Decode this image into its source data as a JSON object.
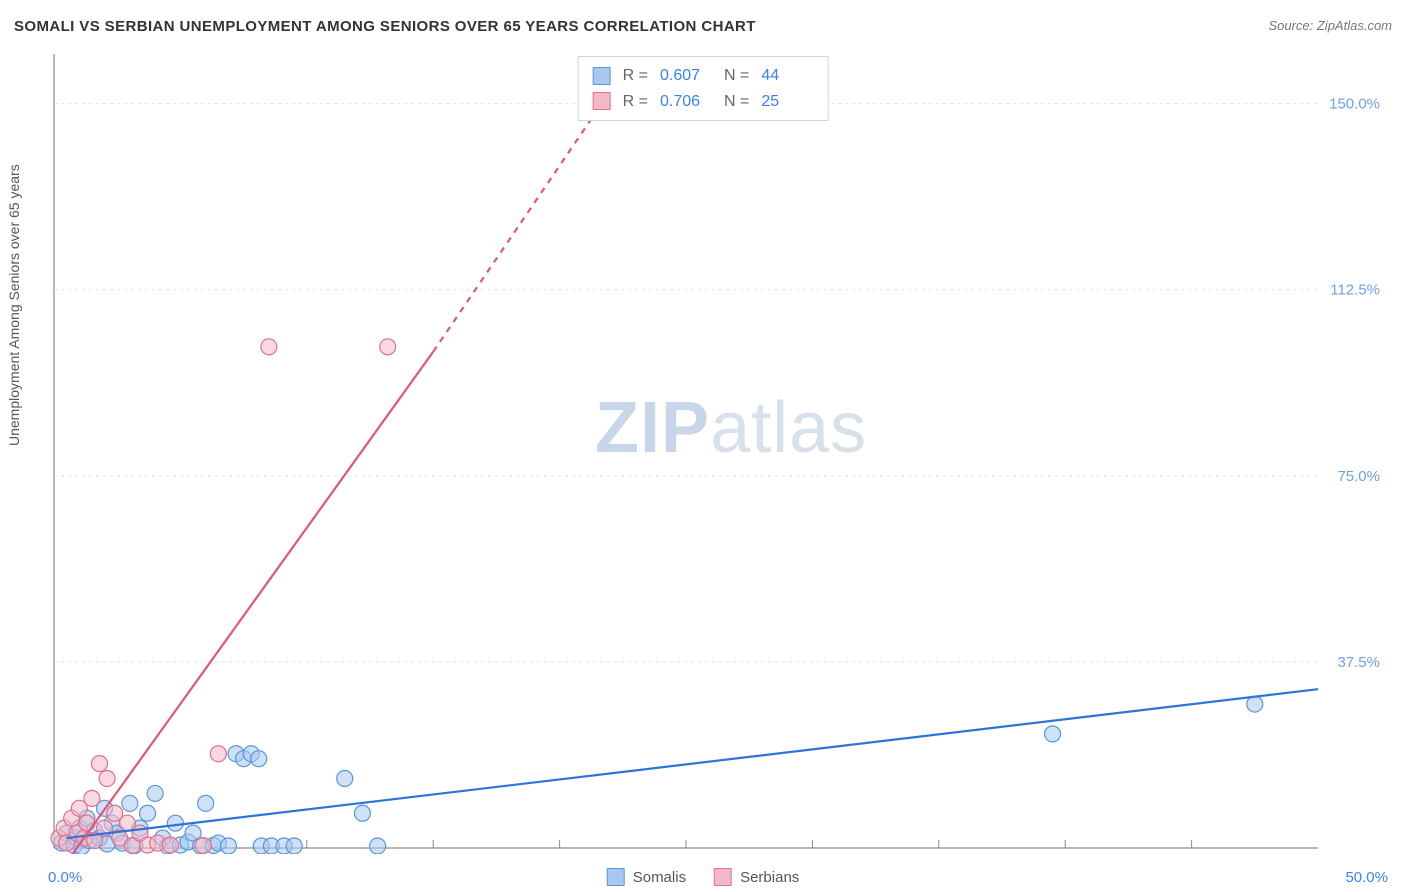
{
  "header": {
    "title": "SOMALI VS SERBIAN UNEMPLOYMENT AMONG SENIORS OVER 65 YEARS CORRELATION CHART",
    "source": "Source: ZipAtlas.com"
  },
  "watermark": {
    "zip": "ZIP",
    "atlas": "atlas"
  },
  "chart": {
    "type": "scatter",
    "ylabel": "Unemployment Among Seniors over 65 years",
    "background_color": "#ffffff",
    "axis_color": "#8a8a8a",
    "grid_color": "#e3e3e3",
    "tick_color": "#8a8a8a",
    "ytick_label_color": "#6fa0ec",
    "xtick_label_color": "#3b82f6",
    "ylabel_fontsize": 14,
    "tick_fontsize": 15,
    "xlim": [
      0,
      50
    ],
    "ylim": [
      0,
      160
    ],
    "y_ticks": [
      37.5,
      75.0,
      112.5,
      150.0
    ],
    "y_tick_labels": [
      "37.5%",
      "75.0%",
      "112.5%",
      "150.0%"
    ],
    "x_minor_ticks": [
      5,
      10,
      15,
      20,
      25,
      30,
      35,
      40,
      45
    ],
    "x_origin_label": "0.0%",
    "x_max_label": "50.0%",
    "marker_radius": 8,
    "marker_stroke_width": 1.2,
    "line_width": 2.2,
    "series": [
      {
        "name": "Somalis",
        "fill_color": "#a7c8f0",
        "stroke_color": "#5a96de",
        "fill_opacity": 0.55,
        "line_color": "#2d74da",
        "line_dash": "none",
        "regression": {
          "x1": 0.5,
          "y1": 2,
          "x2": 50,
          "y2": 32
        },
        "stats": {
          "R": "0.607",
          "N": "44"
        },
        "points": [
          [
            0.3,
            1
          ],
          [
            0.5,
            3
          ],
          [
            0.8,
            0.5
          ],
          [
            0.9,
            2
          ],
          [
            1.0,
            4
          ],
          [
            1.1,
            0.3
          ],
          [
            1.3,
            6
          ],
          [
            1.4,
            1.5
          ],
          [
            1.6,
            3.5
          ],
          [
            1.8,
            2
          ],
          [
            2.0,
            8
          ],
          [
            2.1,
            0.8
          ],
          [
            2.3,
            5
          ],
          [
            2.5,
            3
          ],
          [
            2.7,
            1
          ],
          [
            3.0,
            9
          ],
          [
            3.2,
            0.5
          ],
          [
            3.4,
            4
          ],
          [
            3.7,
            7
          ],
          [
            4.0,
            11
          ],
          [
            4.3,
            2
          ],
          [
            4.5,
            0.4
          ],
          [
            4.8,
            5
          ],
          [
            5.0,
            0.6
          ],
          [
            5.3,
            1.2
          ],
          [
            5.5,
            3
          ],
          [
            5.8,
            0.4
          ],
          [
            6.0,
            9
          ],
          [
            6.3,
            0.5
          ],
          [
            6.5,
            1
          ],
          [
            6.9,
            0.4
          ],
          [
            7.2,
            19
          ],
          [
            7.5,
            18
          ],
          [
            7.8,
            19
          ],
          [
            8.1,
            18
          ],
          [
            8.2,
            0.4
          ],
          [
            8.6,
            0.4
          ],
          [
            9.1,
            0.4
          ],
          [
            9.5,
            0.4
          ],
          [
            11.5,
            14
          ],
          [
            12.2,
            7
          ],
          [
            12.8,
            0.4
          ],
          [
            39.5,
            23
          ],
          [
            47.5,
            29
          ]
        ]
      },
      {
        "name": "Serbians",
        "fill_color": "#f3b9c6",
        "stroke_color": "#e36f8d",
        "fill_opacity": 0.55,
        "line_color": "#e25679",
        "line_dash": "dash_after",
        "regression_solid": {
          "x1": 0.2,
          "y1": -5,
          "x2": 15,
          "y2": 100
        },
        "regression_dash": {
          "x1": 15,
          "y1": 100,
          "x2": 23,
          "y2": 160
        },
        "stats": {
          "R": "0.706",
          "N": "25"
        },
        "points": [
          [
            0.2,
            2
          ],
          [
            0.4,
            4
          ],
          [
            0.5,
            1
          ],
          [
            0.7,
            6
          ],
          [
            0.9,
            3
          ],
          [
            1.0,
            8
          ],
          [
            1.2,
            2
          ],
          [
            1.3,
            5
          ],
          [
            1.5,
            10
          ],
          [
            1.6,
            1.5
          ],
          [
            1.8,
            17
          ],
          [
            2.0,
            4
          ],
          [
            2.1,
            14
          ],
          [
            2.4,
            7
          ],
          [
            2.6,
            2
          ],
          [
            2.9,
            5
          ],
          [
            3.1,
            0.5
          ],
          [
            3.4,
            3
          ],
          [
            3.7,
            0.6
          ],
          [
            4.1,
            1
          ],
          [
            4.6,
            0.6
          ],
          [
            5.9,
            0.5
          ],
          [
            6.5,
            19
          ],
          [
            8.5,
            101
          ],
          [
            13.2,
            101
          ]
        ]
      }
    ]
  },
  "bottom_legend": {
    "items": [
      {
        "label": "Somalis",
        "fill": "#a7c8f0",
        "stroke": "#5a96de"
      },
      {
        "label": "Serbians",
        "fill": "#f3b9c6",
        "stroke": "#e36f8d"
      }
    ]
  },
  "top_legend": {
    "r_label": "R =",
    "n_label": "N ="
  }
}
